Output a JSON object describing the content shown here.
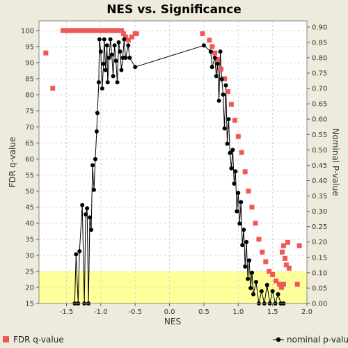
{
  "chart_data": {
    "type": "scatter",
    "title": "NES vs. Significance",
    "xlabel": "NES",
    "ylabel": "FDR q-value",
    "y2label": "Nominal P-value",
    "xlim": [
      -1.9,
      2.0
    ],
    "ylim": [
      15,
      103
    ],
    "y2lim": [
      0,
      0.92
    ],
    "x_ticks": [
      -1.5,
      -1.0,
      -0.5,
      0.0,
      0.5,
      1.0,
      1.5,
      2.0
    ],
    "x_tick_labels": [
      "-1.5",
      "-1.0",
      "-0.5",
      "0.0",
      "0.5",
      "1.0",
      "1.5",
      "2.0"
    ],
    "y_ticks": [
      15,
      20,
      25,
      30,
      35,
      40,
      45,
      50,
      55,
      60,
      65,
      70,
      75,
      80,
      85,
      90,
      95,
      100
    ],
    "y_tick_labels": [
      "15",
      "20",
      "25",
      "30",
      "35",
      "40",
      "45",
      "50",
      "55",
      "60",
      "65",
      "70",
      "75",
      "80",
      "85",
      "90",
      "95",
      "100"
    ],
    "y2_ticks": [
      0.0,
      0.05,
      0.1,
      0.15,
      0.2,
      0.25,
      0.3,
      0.35,
      0.4,
      0.45,
      0.5,
      0.55,
      0.6,
      0.65,
      0.7,
      0.75,
      0.8,
      0.85,
      0.9
    ],
    "y2_tick_labels": [
      "0.00",
      "0.05",
      "0.10",
      "0.15",
      "0.20",
      "0.25",
      "0.30",
      "0.35",
      "0.40",
      "0.45",
      "0.50",
      "0.55",
      "0.60",
      "0.65",
      "0.70",
      "0.75",
      "0.80",
      "0.85",
      "0.90"
    ],
    "grid": true,
    "highlight_band": {
      "y_from": 15,
      "y_to": 25,
      "color": "#ffff99"
    },
    "legend": {
      "placement": "bottom"
    },
    "series": [
      {
        "name": "FDR q-value",
        "axis": "left",
        "marker": "square",
        "color": "#f25757",
        "points": [
          [
            -1.8,
            93
          ],
          [
            -1.7,
            82
          ],
          [
            -1.55,
            100
          ],
          [
            -1.5,
            100
          ],
          [
            -1.45,
            100
          ],
          [
            -1.4,
            100
          ],
          [
            -1.35,
            100
          ],
          [
            -1.3,
            100
          ],
          [
            -1.25,
            100
          ],
          [
            -1.2,
            100
          ],
          [
            -1.15,
            100
          ],
          [
            -1.1,
            100
          ],
          [
            -1.05,
            100
          ],
          [
            -1.0,
            100
          ],
          [
            -0.95,
            100
          ],
          [
            -0.9,
            100
          ],
          [
            -0.85,
            100
          ],
          [
            -0.8,
            100
          ],
          [
            -0.75,
            100
          ],
          [
            -0.7,
            100
          ],
          [
            -0.67,
            99
          ],
          [
            -0.64,
            98
          ],
          [
            -0.6,
            97
          ],
          [
            -0.55,
            98
          ],
          [
            -0.5,
            99
          ],
          [
            -0.48,
            99
          ],
          [
            0.48,
            99
          ],
          [
            0.58,
            97
          ],
          [
            0.62,
            95
          ],
          [
            0.66,
            93
          ],
          [
            0.7,
            91
          ],
          [
            0.75,
            88
          ],
          [
            0.8,
            85
          ],
          [
            0.85,
            81
          ],
          [
            0.9,
            77
          ],
          [
            0.95,
            72
          ],
          [
            1.0,
            67
          ],
          [
            1.05,
            62
          ],
          [
            1.1,
            56
          ],
          [
            1.15,
            50
          ],
          [
            1.2,
            45
          ],
          [
            1.25,
            40
          ],
          [
            1.3,
            35
          ],
          [
            1.35,
            31
          ],
          [
            1.4,
            28
          ],
          [
            1.45,
            25
          ],
          [
            1.5,
            24
          ],
          [
            1.55,
            22
          ],
          [
            1.6,
            21
          ],
          [
            1.63,
            20
          ],
          [
            1.66,
            21
          ],
          [
            1.64,
            31
          ],
          [
            1.68,
            29
          ],
          [
            1.7,
            27
          ],
          [
            1.72,
            34
          ],
          [
            1.74,
            26
          ],
          [
            1.86,
            21
          ],
          [
            1.89,
            33
          ],
          [
            1.66,
            33
          ]
        ]
      },
      {
        "name": "nominal p-value",
        "axis": "right",
        "marker": "circle",
        "color": "#000000",
        "points": [
          [
            -1.38,
            0.0
          ],
          [
            -1.36,
            0.16
          ],
          [
            -1.33,
            0.0
          ],
          [
            -1.31,
            0.17
          ],
          [
            -1.27,
            0.32
          ],
          [
            -1.24,
            0.0
          ],
          [
            -1.22,
            0.29
          ],
          [
            -1.2,
            0.31
          ],
          [
            -1.18,
            0.0
          ],
          [
            -1.16,
            0.28
          ],
          [
            -1.14,
            0.24
          ],
          [
            -1.12,
            0.45
          ],
          [
            -1.1,
            0.37
          ],
          [
            -1.08,
            0.47
          ],
          [
            -1.06,
            0.56
          ],
          [
            -1.05,
            0.62
          ],
          [
            -1.03,
            0.72
          ],
          [
            -1.02,
            0.86
          ],
          [
            -1.0,
            0.82
          ],
          [
            -0.98,
            0.7
          ],
          [
            -0.96,
            0.78
          ],
          [
            -0.95,
            0.86
          ],
          [
            -0.93,
            0.76
          ],
          [
            -0.91,
            0.84
          ],
          [
            -0.9,
            0.72
          ],
          [
            -0.88,
            0.8
          ],
          [
            -0.86,
            0.86
          ],
          [
            -0.84,
            0.81
          ],
          [
            -0.82,
            0.74
          ],
          [
            -0.8,
            0.84
          ],
          [
            -0.78,
            0.79
          ],
          [
            -0.76,
            0.72
          ],
          [
            -0.74,
            0.85
          ],
          [
            -0.72,
            0.82
          ],
          [
            -0.7,
            0.76
          ],
          [
            -0.68,
            0.8
          ],
          [
            -0.66,
            0.86
          ],
          [
            -0.64,
            0.8
          ],
          [
            -0.6,
            0.84
          ],
          [
            -0.58,
            0.8
          ],
          [
            -0.5,
            0.77
          ],
          [
            0.5,
            0.84
          ],
          [
            0.6,
            0.82
          ],
          [
            0.62,
            0.77
          ],
          [
            0.66,
            0.8
          ],
          [
            0.68,
            0.74
          ],
          [
            0.7,
            0.78
          ],
          [
            0.72,
            0.66
          ],
          [
            0.74,
            0.82
          ],
          [
            0.76,
            0.73
          ],
          [
            0.78,
            0.68
          ],
          [
            0.8,
            0.57
          ],
          [
            0.82,
            0.71
          ],
          [
            0.84,
            0.52
          ],
          [
            0.86,
            0.6
          ],
          [
            0.88,
            0.49
          ],
          [
            0.9,
            0.44
          ],
          [
            0.92,
            0.5
          ],
          [
            0.94,
            0.39
          ],
          [
            0.96,
            0.43
          ],
          [
            0.98,
            0.3
          ],
          [
            1.0,
            0.36
          ],
          [
            1.02,
            0.26
          ],
          [
            1.04,
            0.33
          ],
          [
            1.06,
            0.19
          ],
          [
            1.08,
            0.24
          ],
          [
            1.1,
            0.12
          ],
          [
            1.12,
            0.2
          ],
          [
            1.14,
            0.08
          ],
          [
            1.16,
            0.14
          ],
          [
            1.18,
            0.05
          ],
          [
            1.2,
            0.1
          ],
          [
            1.22,
            0.03
          ],
          [
            1.26,
            0.07
          ],
          [
            1.3,
            0.0
          ],
          [
            1.34,
            0.04
          ],
          [
            1.38,
            0.0
          ],
          [
            1.42,
            0.06
          ],
          [
            1.46,
            0.0
          ],
          [
            1.5,
            0.04
          ],
          [
            1.54,
            0.0
          ],
          [
            1.58,
            0.03
          ],
          [
            1.62,
            0.0
          ],
          [
            1.66,
            0.0
          ]
        ]
      }
    ]
  }
}
